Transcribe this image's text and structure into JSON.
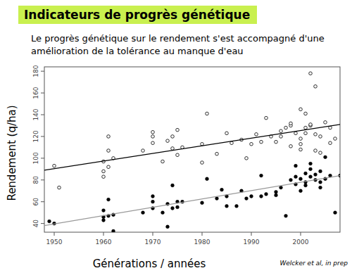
{
  "chart_data": {
    "type": "scatter",
    "title": "Indicateurs de progrès génétique",
    "subtitle": [
      "Le progrès génétique sur le rendement s'est accompagné d'une",
      "amélioration de la tolérance au manque d'eau"
    ],
    "x_label": "Générations / années",
    "y_label": "Rendement (q/ha)",
    "annotations": [
      "Welcker et al, in prep"
    ],
    "xlim": [
      1948,
      2008
    ],
    "ylim": [
      32,
      184
    ],
    "xticks": [
      1950,
      1960,
      1970,
      1980,
      1990,
      2000
    ],
    "yticks": [
      40,
      60,
      80,
      100,
      120,
      140,
      160,
      180
    ],
    "grid": false,
    "series": [
      {
        "type": "scatter",
        "marker": "open-circle",
        "color": "#000000",
        "x": [
          1950,
          1951,
          1960,
          1960,
          1960,
          1961,
          1961,
          1961,
          1962,
          1968,
          1970,
          1970,
          1970,
          1972,
          1973,
          1974,
          1974,
          1975,
          1975,
          1976,
          1980,
          1980,
          1981,
          1983,
          1985,
          1986,
          1988,
          1989,
          1990,
          1991,
          1992,
          1993,
          1994,
          1995,
          1996,
          1996,
          1997,
          1998,
          1998,
          1998,
          1999,
          2000,
          2000,
          2000,
          2000,
          2001,
          2001,
          2001,
          2002,
          2002,
          2002,
          2003,
          2003,
          2003,
          2004,
          2004,
          2005,
          2006,
          2006,
          2007
        ],
        "values": [
          93,
          73,
          83,
          88,
          97,
          107,
          120,
          92,
          100,
          107,
          114,
          120,
          124,
          97,
          116,
          109,
          120,
          126,
          103,
          110,
          96,
          113,
          141,
          104,
          123,
          114,
          117,
          100,
          113,
          122,
          115,
          137,
          120,
          115,
          120,
          125,
          128,
          130,
          132,
          111,
          123,
          145,
          118,
          113,
          108,
          141,
          128,
          123,
          178,
          130,
          131,
          166,
          122,
          107,
          105,
          120,
          133,
          128,
          114,
          118
        ]
      },
      {
        "type": "scatter",
        "marker": "filled-circle",
        "color": "#000000",
        "x": [
          1949,
          1950,
          1960,
          1960,
          1960,
          1961,
          1961,
          1962,
          1962,
          1968,
          1970,
          1970,
          1970,
          1972,
          1973,
          1973,
          1974,
          1974,
          1975,
          1975,
          1976,
          1980,
          1981,
          1983,
          1984,
          1985,
          1985,
          1987,
          1988,
          1989,
          1990,
          1992,
          1992,
          1993,
          1995,
          1995,
          1996,
          1997,
          1998,
          1999,
          1999,
          1999,
          2000,
          2000,
          2001,
          2001,
          2001,
          2002,
          2002,
          2002,
          2003,
          2003,
          2004,
          2004,
          2004,
          2005,
          2005,
          2006,
          2007,
          2008
        ],
        "values": [
          42,
          40,
          52,
          46,
          43,
          62,
          47,
          33,
          48,
          50,
          65,
          60,
          54,
          50,
          58,
          37,
          75,
          54,
          55,
          60,
          60,
          59,
          81,
          63,
          71,
          56,
          65,
          56,
          70,
          63,
          65,
          84,
          65,
          67,
          69,
          66,
          73,
          47,
          80,
          93,
          83,
          76,
          81,
          70,
          86,
          78,
          75,
          95,
          90,
          83,
          85,
          80,
          88,
          78,
          73,
          101,
          81,
          84,
          50,
          84
        ]
      },
      {
        "type": "line",
        "line_style": "solid",
        "color": "#000000",
        "x": [
          1948,
          2008
        ],
        "values": [
          89,
          131
        ]
      },
      {
        "type": "line",
        "line_style": "solid",
        "color": "#999999",
        "x": [
          1948,
          2008
        ],
        "values": [
          38,
          84
        ]
      }
    ]
  }
}
